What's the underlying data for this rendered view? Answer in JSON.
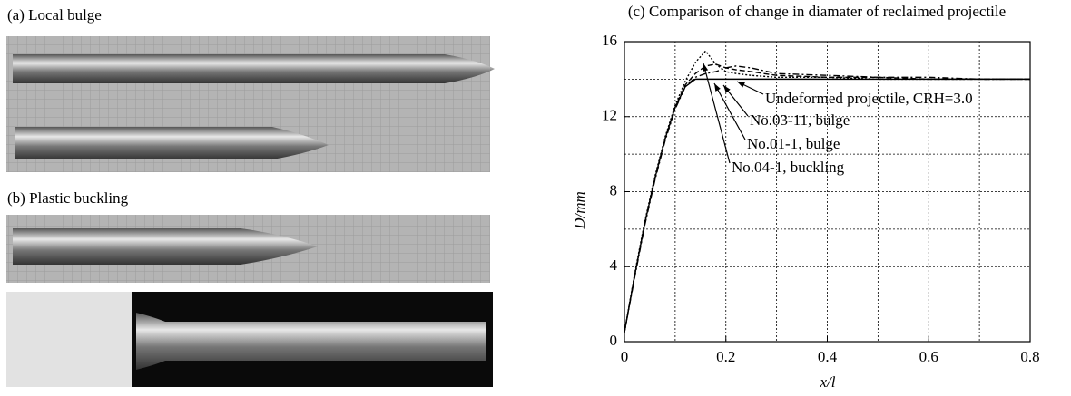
{
  "panels": {
    "a": "(a) Local bulge",
    "b": "(b) Plastic buckling"
  },
  "chart_data": {
    "type": "line",
    "title": "(c) Comparison of change in diamater of reclaimed projectile",
    "x_label": "x/l",
    "y_label": "D/mm",
    "x": [
      0,
      0.02,
      0.04,
      0.06,
      0.08,
      0.1,
      0.12,
      0.14,
      0.16,
      0.18,
      0.2,
      0.22,
      0.25,
      0.3,
      0.4,
      0.5,
      0.6,
      0.7,
      0.8
    ],
    "series": [
      {
        "name": "Undeformed projectile, CRH=3.0",
        "color": "#000000",
        "dash": "solid",
        "values": [
          0.5,
          3.5,
          6.3,
          8.7,
          10.8,
          12.5,
          13.6,
          14.0,
          14.0,
          14.0,
          14.0,
          14.0,
          14.0,
          14.0,
          14.0,
          14.0,
          14.0,
          14.0,
          14.0
        ]
      },
      {
        "name": "No.03-11, bulge",
        "color": "#000000",
        "dash": "dashdot",
        "values": [
          0.5,
          3.4,
          6.2,
          8.6,
          10.7,
          12.4,
          13.6,
          14.1,
          14.3,
          14.4,
          14.6,
          14.7,
          14.6,
          14.3,
          14.2,
          14.1,
          14.1,
          14.0,
          14.0
        ]
      },
      {
        "name": "No.01-1, bulge",
        "color": "#000000",
        "dash": "dashed",
        "values": [
          0.5,
          3.5,
          6.3,
          8.7,
          10.8,
          12.5,
          13.7,
          14.3,
          14.7,
          14.8,
          14.6,
          14.5,
          14.4,
          14.2,
          14.1,
          14.1,
          14.0,
          14.0,
          14.0
        ]
      },
      {
        "name": "No.04-1, buckling",
        "color": "#000000",
        "dash": "dotted",
        "values": [
          0.5,
          3.6,
          6.4,
          8.8,
          10.9,
          12.6,
          13.9,
          14.9,
          15.5,
          14.8,
          14.4,
          14.3,
          14.2,
          14.1,
          14.1,
          14.0,
          14.0,
          14.0,
          14.0
        ]
      }
    ],
    "xlim": [
      0,
      0.8
    ],
    "ylim": [
      0,
      16
    ],
    "xticks": [
      0,
      0.2,
      0.4,
      0.6,
      0.8
    ],
    "yticks": [
      0,
      4,
      8,
      12,
      16
    ],
    "xgrid": [
      0.1,
      0.3,
      0.5,
      0.7
    ],
    "ygrid": [
      2,
      6,
      10,
      14
    ],
    "grid": true
  }
}
